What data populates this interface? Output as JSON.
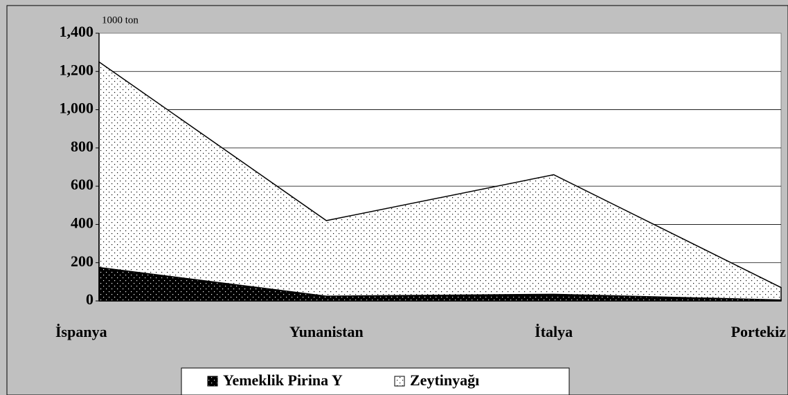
{
  "chart_data": {
    "type": "stacked_area",
    "unit_label": "1000 ton",
    "categories": [
      "İspanya",
      "Yunanistan",
      "İtalya",
      "Portekiz"
    ],
    "series": [
      {
        "name": "Yemeklik Pirina Y",
        "color": "#000000",
        "values": [
          175,
          25,
          35,
          5
        ]
      },
      {
        "name": "Zeytinyağı",
        "color": "#ffffff",
        "values": [
          1075,
          395,
          625,
          65
        ]
      }
    ],
    "ylim": [
      0,
      1400
    ],
    "yticks": [
      0,
      200,
      400,
      600,
      800,
      {
        "value": 1000,
        "label": "1,000"
      },
      {
        "value": 1200,
        "label": "1,200"
      },
      {
        "value": 1400,
        "label": "1,400"
      }
    ],
    "grid": true,
    "legend": "bottom"
  }
}
